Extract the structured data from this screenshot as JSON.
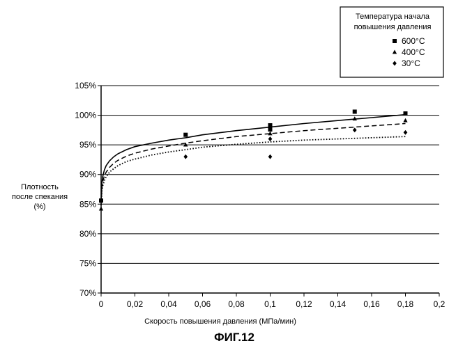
{
  "chart_data": {
    "type": "scatter",
    "caption": "ФИГ.12",
    "xlabel": "Скорость повышения давления (МПа/мин)",
    "ylabel": [
      "Плотность",
      "после спекания",
      "(%)"
    ],
    "xlim": [
      0,
      0.2
    ],
    "ylim": [
      70,
      105
    ],
    "x_ticks": [
      0,
      0.02,
      0.04,
      0.06,
      0.08,
      0.1,
      0.12,
      0.14,
      0.16,
      0.18,
      0.2
    ],
    "x_tick_labels": [
      "0",
      "0,02",
      "0,04",
      "0,06",
      "0,08",
      "0,1",
      "0,12",
      "0,14",
      "0,16",
      "0,18",
      "0,2"
    ],
    "y_ticks": [
      70,
      75,
      80,
      85,
      90,
      95,
      100,
      105
    ],
    "y_tick_labels": [
      "70%",
      "75%",
      "80%",
      "85%",
      "90%",
      "95%",
      "100%",
      "105%"
    ],
    "grid": "horizontal",
    "legend": {
      "title": [
        "Температура начала",
        "повышения давления"
      ],
      "position": "top-right"
    },
    "series": [
      {
        "name": "600°C",
        "marker": "square",
        "trend": "solid",
        "points": [
          [
            0,
            85.6
          ],
          [
            0.05,
            96.7
          ],
          [
            0.1,
            98.3
          ],
          [
            0.1,
            97.6
          ],
          [
            0.15,
            100.6
          ],
          [
            0.18,
            100.3
          ]
        ],
        "trend_curve": [
          [
            0,
            85.5
          ],
          [
            0.0005,
            88.7
          ],
          [
            0.001,
            89.7
          ],
          [
            0.002,
            90.8
          ],
          [
            0.003,
            91.5
          ],
          [
            0.005,
            92.3
          ],
          [
            0.0075,
            93.0
          ],
          [
            0.01,
            93.5
          ],
          [
            0.015,
            94.2
          ],
          [
            0.02,
            94.7
          ],
          [
            0.03,
            95.3
          ],
          [
            0.04,
            95.8
          ],
          [
            0.05,
            96.2
          ],
          [
            0.06,
            96.7
          ],
          [
            0.08,
            97.4
          ],
          [
            0.1,
            98.0
          ],
          [
            0.12,
            98.6
          ],
          [
            0.14,
            99.1
          ],
          [
            0.16,
            99.6
          ],
          [
            0.18,
            100.1
          ]
        ]
      },
      {
        "name": "400°C",
        "marker": "triangle",
        "trend": "dashed",
        "points": [
          [
            0,
            84.2
          ],
          [
            0.05,
            95.0
          ],
          [
            0.1,
            96.9
          ],
          [
            0.15,
            99.4
          ],
          [
            0.18,
            99.1
          ]
        ],
        "trend_curve": [
          [
            0,
            85.0
          ],
          [
            0.0005,
            87.9
          ],
          [
            0.001,
            88.8
          ],
          [
            0.002,
            89.8
          ],
          [
            0.003,
            90.4
          ],
          [
            0.005,
            91.2
          ],
          [
            0.0075,
            91.9
          ],
          [
            0.01,
            92.4
          ],
          [
            0.015,
            93.1
          ],
          [
            0.02,
            93.6
          ],
          [
            0.03,
            94.3
          ],
          [
            0.04,
            94.8
          ],
          [
            0.05,
            95.3
          ],
          [
            0.06,
            95.7
          ],
          [
            0.08,
            96.4
          ],
          [
            0.1,
            96.9
          ],
          [
            0.12,
            97.4
          ],
          [
            0.14,
            97.8
          ],
          [
            0.16,
            98.2
          ],
          [
            0.18,
            98.6
          ]
        ]
      },
      {
        "name": "30°C",
        "marker": "diamond",
        "trend": "dotted",
        "points": [
          [
            0.05,
            93.0
          ],
          [
            0.1,
            96.0
          ],
          [
            0.1,
            93.0
          ],
          [
            0.15,
            97.5
          ],
          [
            0.18,
            97.1
          ]
        ],
        "trend_curve": [
          [
            0,
            84.8
          ],
          [
            0.0005,
            87.3
          ],
          [
            0.001,
            88.1
          ],
          [
            0.002,
            89.0
          ],
          [
            0.003,
            89.6
          ],
          [
            0.005,
            90.4
          ],
          [
            0.0075,
            91.0
          ],
          [
            0.01,
            91.5
          ],
          [
            0.015,
            92.2
          ],
          [
            0.02,
            92.6
          ],
          [
            0.03,
            93.3
          ],
          [
            0.04,
            93.8
          ],
          [
            0.05,
            94.2
          ],
          [
            0.06,
            94.6
          ],
          [
            0.08,
            95.1
          ],
          [
            0.1,
            95.5
          ],
          [
            0.12,
            95.8
          ],
          [
            0.14,
            96.0
          ],
          [
            0.16,
            96.2
          ],
          [
            0.18,
            96.4
          ]
        ]
      }
    ]
  }
}
